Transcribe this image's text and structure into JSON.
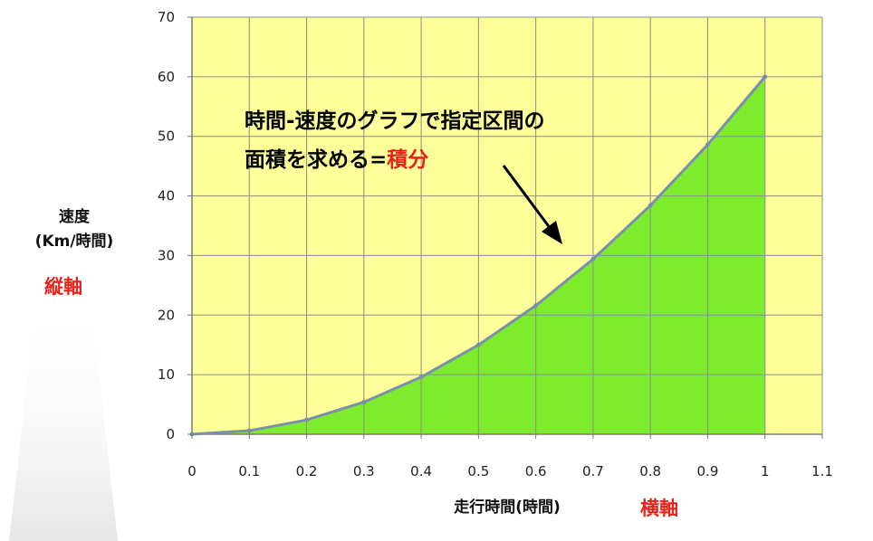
{
  "chart_data": {
    "type": "area",
    "x": [
      0,
      0.1,
      0.2,
      0.3,
      0.4,
      0.5,
      0.6,
      0.7,
      0.8,
      0.9,
      1.0
    ],
    "series": [
      {
        "values": [
          0,
          0.6,
          2.4,
          5.4,
          9.6,
          15,
          21.6,
          29.4,
          38.4,
          48.6,
          60
        ]
      }
    ],
    "xlim": [
      0,
      1.1
    ],
    "ylim": [
      0,
      70
    ],
    "x_ticks": [
      "0",
      "0.1",
      "0.2",
      "0.3",
      "0.4",
      "0.5",
      "0.6",
      "0.7",
      "0.8",
      "0.9",
      "1",
      "1.1"
    ],
    "y_ticks": [
      "0",
      "10",
      "20",
      "30",
      "40",
      "50",
      "60",
      "70"
    ],
    "xlabel": "走行時間(時間)",
    "ylabel_line1": "速度",
    "ylabel_line2": "(Km/時間)",
    "x_axis_name": "横軸",
    "y_axis_name": "縦軸",
    "annotation_line1_text": "時間-速度のグラフで指定区間の",
    "annotation_line2_text": "面積を求める=",
    "annotation_line2_highlight": "積分",
    "colors": {
      "plot_background": "#ffff99",
      "fill": "#7dec2c",
      "line": "#7b8eaf",
      "grid": "#8c8c8c",
      "highlight": "#e8211a"
    },
    "grid": true
  }
}
